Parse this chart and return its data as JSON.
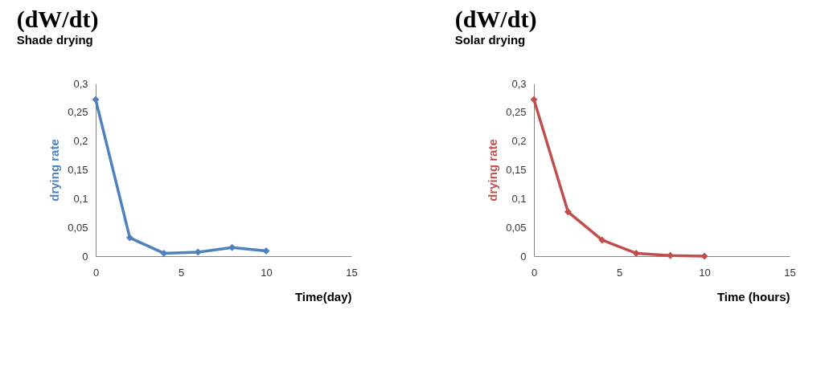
{
  "chart_data": [
    {
      "type": "line",
      "title": "(dW/dt)",
      "subtitle": "Shade drying",
      "xlabel": "Time(day)",
      "ylabel": "drying rate",
      "marker": "diamond",
      "grid": false,
      "x": [
        0,
        2,
        4,
        6,
        8,
        10
      ],
      "series": [
        {
          "color": "#4f81bd",
          "values": [
            0.272,
            0.032,
            0.005,
            0.007,
            0.015,
            0.009
          ]
        }
      ],
      "xlim": [
        0,
        15
      ],
      "xticks": [
        0,
        5,
        10,
        15
      ],
      "ylim": [
        0,
        0.3
      ],
      "yticks": [
        {
          "value": 0,
          "label": "0"
        },
        {
          "value": 0.05,
          "label": "0,05"
        },
        {
          "value": 0.1,
          "label": "0,1"
        },
        {
          "value": 0.15,
          "label": "0,15"
        },
        {
          "value": 0.2,
          "label": "0,2"
        },
        {
          "value": 0.25,
          "label": "0,25"
        },
        {
          "value": 0.3,
          "label": "0,3"
        }
      ]
    },
    {
      "type": "line",
      "title": "(dW/dt)",
      "subtitle": "Solar drying",
      "xlabel": "Time (hours)",
      "ylabel": "drying rate",
      "marker": "diamond",
      "grid": false,
      "x": [
        0,
        2,
        4,
        6,
        8,
        10
      ],
      "series": [
        {
          "color": "#c0504d",
          "values": [
            0.272,
            0.077,
            0.028,
            0.005,
            0.001,
            0
          ]
        }
      ],
      "xlim": [
        0,
        15
      ],
      "xticks": [
        0,
        5,
        10,
        15
      ],
      "ylim": [
        0,
        0.3
      ],
      "yticks": [
        {
          "value": 0,
          "label": "0"
        },
        {
          "value": 0.05,
          "label": "0,05"
        },
        {
          "value": 0.1,
          "label": "0,1"
        },
        {
          "value": 0.15,
          "label": "0,15"
        },
        {
          "value": 0.2,
          "label": "0,2"
        },
        {
          "value": 0.25,
          "label": "0,25"
        },
        {
          "value": 0.3,
          "label": "0,3"
        }
      ]
    }
  ]
}
